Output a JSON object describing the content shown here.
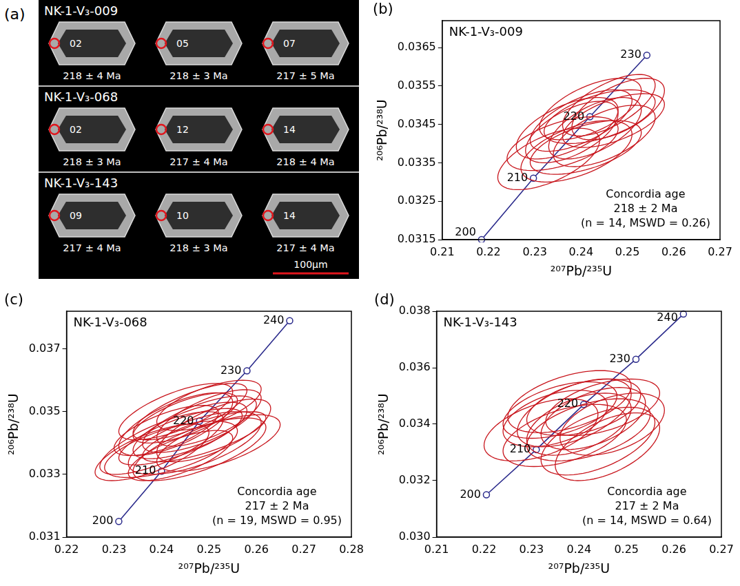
{
  "panel_a": {
    "letter": "(a)",
    "scale_bar": "100μm",
    "rows": [
      {
        "sample": "NK-1-V₃-009",
        "grains": [
          {
            "spot": "02",
            "age": "218 ± 4 Ma"
          },
          {
            "spot": "05",
            "age": "218 ± 3 Ma"
          },
          {
            "spot": "07",
            "age": "217 ± 5 Ma"
          }
        ]
      },
      {
        "sample": "NK-1-V₃-068",
        "grains": [
          {
            "spot": "02",
            "age": "218 ± 3 Ma"
          },
          {
            "spot": "12",
            "age": "217 ± 4 Ma"
          },
          {
            "spot": "14",
            "age": "218 ± 4 Ma"
          }
        ]
      },
      {
        "sample": "NK-1-V₃-143",
        "grains": [
          {
            "spot": "09",
            "age": "217 ± 4 Ma"
          },
          {
            "spot": "10",
            "age": "218 ± 3 Ma"
          },
          {
            "spot": "14",
            "age": "217 ± 4 Ma"
          }
        ]
      }
    ]
  },
  "chart_data": [
    {
      "type": "scatter",
      "letter": "(b)",
      "title": "NK-1-V₃-009",
      "x_label": "²⁰⁷Pb/²³⁵U",
      "y_label": "²⁰⁶Pb/²³⁸U",
      "xlim": [
        0.21,
        0.27
      ],
      "xticks": [
        0.21,
        0.22,
        0.23,
        0.24,
        0.25,
        0.26,
        0.27
      ],
      "ylim": [
        0.0315,
        0.0372
      ],
      "yticks": [
        0.0315,
        0.0325,
        0.0335,
        0.0345,
        0.0355,
        0.0365
      ],
      "grid": false,
      "concordia": {
        "color": "#2b2b8c",
        "ages": [
          200,
          210,
          220,
          230
        ],
        "x": [
          0.2185,
          0.2297,
          0.2419,
          0.2542
        ],
        "y": [
          0.0315,
          0.0331,
          0.0347,
          0.0363
        ]
      },
      "ellipses": {
        "color": "#c8161d",
        "x": [
          0.233,
          0.236,
          0.238,
          0.24,
          0.241,
          0.242,
          0.243,
          0.244,
          0.245,
          0.246,
          0.247,
          0.239,
          0.237,
          0.248
        ],
        "y": [
          0.0336,
          0.034,
          0.0343,
          0.0346,
          0.0339,
          0.0349,
          0.0344,
          0.0347,
          0.0342,
          0.035,
          0.0346,
          0.0338,
          0.0344,
          0.0349
        ],
        "x_err": [
          0.011,
          0.012,
          0.01,
          0.011,
          0.012,
          0.011,
          0.01,
          0.012,
          0.011,
          0.01,
          0.011,
          0.012,
          0.011,
          0.01
        ],
        "y_err": [
          0.0008,
          0.0007,
          0.0008,
          0.0008,
          0.0007,
          0.0008,
          0.0008,
          0.0007,
          0.0008,
          0.0008,
          0.0007,
          0.0008,
          0.0008,
          0.0008
        ],
        "rho": [
          0.6,
          0.55,
          0.6,
          0.65,
          0.55,
          0.6,
          0.6,
          0.55,
          0.6,
          0.65,
          0.6,
          0.55,
          0.6,
          0.6
        ]
      },
      "annotation": [
        "Concordia age",
        "218 ± 2 Ma",
        "(n = 14, MSWD = 0.26)"
      ]
    },
    {
      "type": "scatter",
      "letter": "(c)",
      "title": "NK-1-V₃-068",
      "x_label": "²⁰⁷Pb/²³⁵U",
      "y_label": "²⁰⁶Pb/²³⁸U",
      "xlim": [
        0.22,
        0.28
      ],
      "xticks": [
        0.22,
        0.23,
        0.24,
        0.25,
        0.26,
        0.27,
        0.28
      ],
      "ylim": [
        0.031,
        0.0382
      ],
      "yticks": [
        0.031,
        0.033,
        0.035,
        0.037
      ],
      "grid": false,
      "concordia": {
        "color": "#2b2b8c",
        "ages": [
          200,
          210,
          220,
          230,
          240
        ],
        "x": [
          0.231,
          0.24,
          0.248,
          0.258,
          0.267
        ],
        "y": [
          0.0315,
          0.0331,
          0.0347,
          0.0363,
          0.0379
        ]
      },
      "ellipses": {
        "color": "#c8161d",
        "x": [
          0.238,
          0.24,
          0.241,
          0.242,
          0.243,
          0.244,
          0.245,
          0.246,
          0.247,
          0.248,
          0.249,
          0.25,
          0.251,
          0.252,
          0.244,
          0.246,
          0.248,
          0.243,
          0.25
        ],
        "y": [
          0.0337,
          0.034,
          0.0344,
          0.0338,
          0.0346,
          0.0342,
          0.0348,
          0.0344,
          0.034,
          0.0346,
          0.0342,
          0.0348,
          0.0344,
          0.034,
          0.0336,
          0.035,
          0.0338,
          0.035,
          0.0352
        ],
        "x_err": [
          0.012,
          0.013,
          0.011,
          0.014,
          0.012,
          0.013,
          0.011,
          0.012,
          0.014,
          0.012,
          0.013,
          0.011,
          0.012,
          0.013,
          0.011,
          0.012,
          0.014,
          0.012,
          0.011
        ],
        "y_err": [
          0.0009,
          0.001,
          0.0008,
          0.0009,
          0.001,
          0.0009,
          0.0008,
          0.0009,
          0.001,
          0.0009,
          0.0008,
          0.0009,
          0.001,
          0.0009,
          0.0008,
          0.0009,
          0.001,
          0.0009,
          0.0008
        ],
        "rho": [
          0.7,
          0.75,
          0.7,
          0.65,
          0.7,
          0.75,
          0.7,
          0.7,
          0.65,
          0.7,
          0.75,
          0.7,
          0.7,
          0.65,
          0.7,
          0.75,
          0.7,
          0.7,
          0.65
        ]
      },
      "annotation": [
        "Concordia age",
        "217 ± 2 Ma",
        "(n = 19, MSWD = 0.95)"
      ]
    },
    {
      "type": "scatter",
      "letter": "(d)",
      "title": "NK-1-V₃-143",
      "x_label": "²⁰⁷Pb/²³⁵U",
      "y_label": "²⁰⁶Pb/²³⁸U",
      "xlim": [
        0.21,
        0.27
      ],
      "xticks": [
        0.21,
        0.22,
        0.23,
        0.24,
        0.25,
        0.26,
        0.27
      ],
      "ylim": [
        0.03,
        0.038
      ],
      "yticks": [
        {
          "value": 0.03,
          "label": "0.030"
        },
        0.032,
        0.034,
        0.036,
        0.038
      ],
      "grid": false,
      "concordia": {
        "color": "#2b2b8c",
        "ages": [
          200,
          210,
          220,
          230,
          240
        ],
        "x": [
          0.2205,
          0.231,
          0.241,
          0.252,
          0.262
        ],
        "y": [
          0.0315,
          0.0331,
          0.0347,
          0.0363,
          0.0379
        ]
      },
      "ellipses": {
        "color": "#c8161d",
        "x": [
          0.232,
          0.235,
          0.237,
          0.239,
          0.24,
          0.241,
          0.242,
          0.243,
          0.244,
          0.245,
          0.247,
          0.238,
          0.236,
          0.246
        ],
        "y": [
          0.0338,
          0.0342,
          0.0336,
          0.0344,
          0.034,
          0.0346,
          0.0338,
          0.0342,
          0.0334,
          0.0346,
          0.034,
          0.0348,
          0.0345,
          0.0332
        ],
        "x_err": [
          0.012,
          0.011,
          0.013,
          0.012,
          0.011,
          0.012,
          0.013,
          0.011,
          0.012,
          0.012,
          0.011,
          0.013,
          0.012,
          0.011
        ],
        "y_err": [
          0.0011,
          0.001,
          0.0011,
          0.0012,
          0.0011,
          0.001,
          0.0011,
          0.0011,
          0.0012,
          0.001,
          0.0011,
          0.0011,
          0.001,
          0.0012
        ],
        "rho": [
          0.5,
          0.45,
          0.5,
          0.55,
          0.5,
          0.45,
          0.5,
          0.5,
          0.55,
          0.5,
          0.45,
          0.5,
          0.5,
          0.55
        ]
      },
      "annotation": [
        "Concordia age",
        "217 ± 2 Ma",
        "(n = 14, MSWD = 0.64)"
      ]
    }
  ]
}
